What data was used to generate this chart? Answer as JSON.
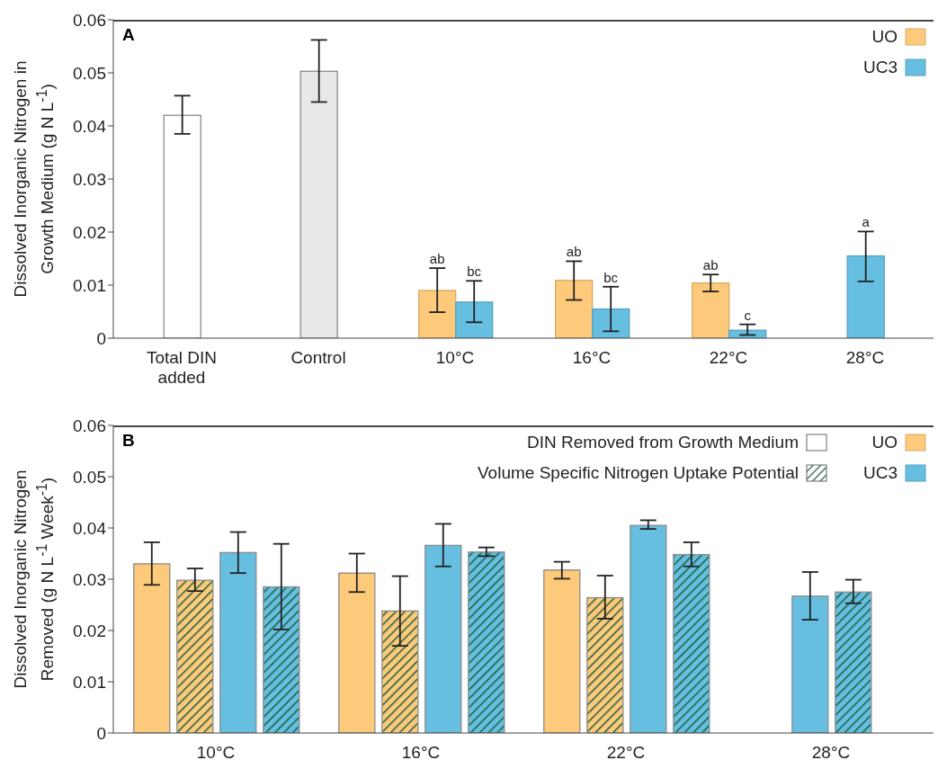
{
  "chart_data": [
    {
      "type": "bar",
      "title": "A",
      "ylabel": "Dissolved Inorganic Nitrogen in Growth Medium (g N L$^{-1}$)",
      "categories": [
        "Total DIN added",
        "Control",
        "10°C",
        "16°C",
        "22°C",
        "28°C"
      ],
      "series": [
        {
          "colors": [
            "#ffffff",
            "#e8e8e8",
            null,
            null,
            null,
            null
          ],
          "values": [
            0.042,
            0.0503,
            null,
            null,
            null,
            null
          ],
          "errors": [
            [
              0.0385,
              0.0457
            ],
            [
              0.0445,
              0.0562
            ],
            null,
            null,
            null,
            null
          ]
        },
        {
          "name": "UO",
          "color": "#fdc97a",
          "values": [
            null,
            null,
            0.009,
            0.0109,
            0.0104,
            null
          ],
          "errors": [
            null,
            null,
            [
              0.0049,
              0.0132
            ],
            [
              0.0072,
              0.0145
            ],
            [
              0.0088,
              0.012
            ],
            null
          ]
        },
        {
          "name": "UC3",
          "color": "#66bfe0",
          "values": [
            null,
            null,
            0.0068,
            0.0055,
            0.0015,
            0.0155
          ],
          "errors": [
            null,
            null,
            [
              0.003,
              0.0108
            ],
            [
              0.0013,
              0.0097
            ],
            [
              0.0006,
              0.0026
            ],
            [
              0.0107,
              0.0201
            ]
          ]
        }
      ],
      "annotations": [
        {
          "text": "ab",
          "x": "10°C",
          "y": 0.009
        },
        {
          "text": "bc",
          "x": "10°C",
          "y": 0.0068
        },
        {
          "text": "ab",
          "x": "16°C",
          "y": 0.0109
        },
        {
          "text": "bc",
          "x": "16°C",
          "y": 0.0055
        },
        {
          "text": "ab",
          "x": "22°C",
          "y": 0.0104
        },
        {
          "text": "c",
          "x": "22°C",
          "y": 0.0015
        },
        {
          "text": "a",
          "x": "28°C",
          "y": 0.0155
        }
      ],
      "ylim": [
        0,
        0.06
      ],
      "yticks": [
        0,
        0.01,
        0.02,
        0.03,
        0.04,
        0.05,
        0.06
      ],
      "legend": "top right"
    },
    {
      "type": "bar",
      "title": "B",
      "ylabel": "Dissolved Inorganic Nitrogen Removed (g N L$^{-1}$ Week$^{-1}$)",
      "categories": [
        "10°C",
        "16°C",
        "22°C",
        "28°C"
      ],
      "series": [
        {
          "name": "UO",
          "color": "#fdc97a",
          "values": [
            0.033,
            0.0312,
            0.0318,
            null
          ],
          "errors": [
            [
              0.0289,
              0.0372
            ],
            [
              0.0275,
              0.035
            ],
            [
              0.0301,
              0.0334
            ],
            null
          ]
        },
        {
          "color": "#fdc97a",
          "values": [
            0.0298,
            0.0238,
            0.0264,
            null
          ],
          "errors": [
            [
              0.0277,
              0.0321
            ],
            [
              0.017,
              0.0306
            ],
            [
              0.0223,
              0.0307
            ],
            null
          ]
        },
        {
          "name": "UC3",
          "color": "#66bfe0",
          "values": [
            0.0352,
            0.0366,
            0.0405,
            0.0267
          ],
          "errors": [
            [
              0.0312,
              0.0392
            ],
            [
              0.0325,
              0.0408
            ],
            [
              0.0398,
              0.0415
            ],
            [
              0.0221,
              0.0314
            ]
          ]
        },
        {
          "color": "#66bfe0",
          "values": [
            0.0285,
            0.0353,
            0.0348,
            0.0275
          ],
          "errors": [
            [
              0.0202,
              0.0369
            ],
            [
              0.0345,
              0.0362
            ],
            [
              0.0325,
              0.0372
            ],
            [
              0.0253,
              0.0299
            ]
          ]
        }
      ],
      "annotations": [
        "DIN Removed from Growth Medium",
        "Volume Specific Nitrogen Uptake Potential"
      ],
      "ylim": [
        0,
        0.06
      ],
      "yticks": [
        0,
        0.01,
        0.02,
        0.03,
        0.04,
        0.05,
        0.06
      ],
      "legend": "top right"
    }
  ]
}
